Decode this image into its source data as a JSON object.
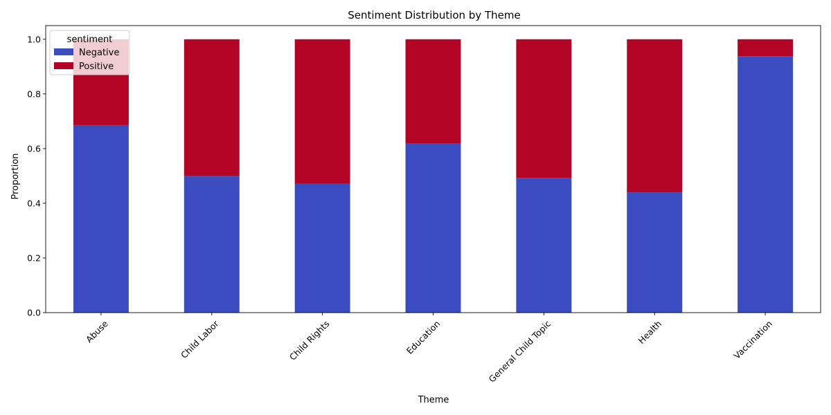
{
  "chart_data": {
    "type": "bar",
    "stacked": true,
    "title": "Sentiment Distribution by Theme",
    "xlabel": "Theme",
    "ylabel": "Proportion",
    "ylim": [
      0,
      1.05
    ],
    "yticks": [
      "0.0",
      "0.2",
      "0.4",
      "0.6",
      "0.8",
      "1.0"
    ],
    "categories": [
      "Abuse",
      "Child Labor",
      "Child Rights",
      "Education",
      "General Child Topic",
      "Health",
      "Vaccination"
    ],
    "series": [
      {
        "name": "Negative",
        "color": "#3b4cc0",
        "values": [
          0.686,
          0.5,
          0.472,
          0.618,
          0.493,
          0.44,
          0.938
        ]
      },
      {
        "name": "Positive",
        "color": "#b40426",
        "values": [
          0.314,
          0.5,
          0.528,
          0.382,
          0.507,
          0.56,
          0.062
        ]
      }
    ],
    "legend": {
      "title": "sentiment",
      "placement": "top-left"
    },
    "grid": false
  }
}
